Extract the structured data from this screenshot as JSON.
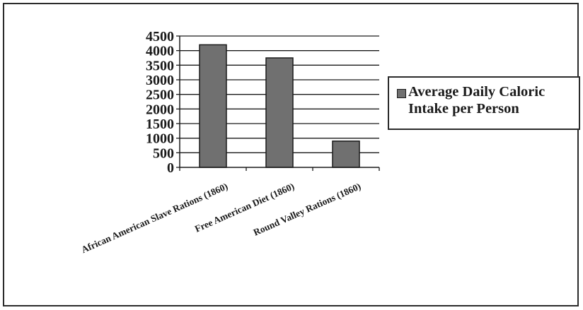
{
  "chart_data": {
    "type": "bar",
    "categories": [
      "African American Slave Rations (1860)",
      "Free American Diet (1860)",
      "Round Valley Rations (1860)"
    ],
    "series": [
      {
        "name": "Average Daily Caloric Intake per Person",
        "values": [
          4200,
          3750,
          900
        ]
      }
    ],
    "yticks": [
      "0",
      "500",
      "1000",
      "1500",
      "2000",
      "2500",
      "3000",
      "3500",
      "4000",
      "4500"
    ],
    "ylim": [
      0,
      4500
    ],
    "grid": true,
    "legend_position": "right",
    "bar_color": "#707070"
  }
}
